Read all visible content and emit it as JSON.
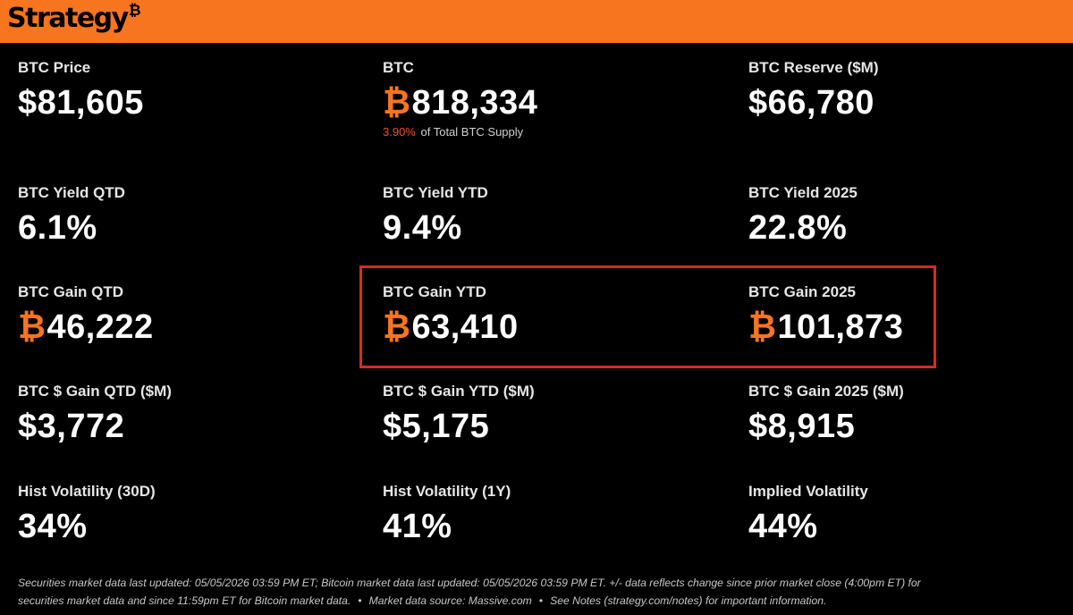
{
  "header": {
    "logo_text": "Strategy",
    "logo_mark": "₿",
    "bg_color": "#F7751E"
  },
  "colors": {
    "accent": "#F7751E",
    "highlight_border": "#D42A2A",
    "supply_pct": "#F0502A"
  },
  "btc_symbol": "₿",
  "metrics": {
    "btc_price": {
      "label": "BTC Price",
      "value": "$81,605"
    },
    "btc_holdings": {
      "label": "BTC",
      "value": "818,334",
      "supply_pct": "3.90%",
      "supply_text": "of Total BTC Supply"
    },
    "btc_reserve": {
      "label": "BTC Reserve ($M)",
      "value": "$66,780"
    },
    "yield_qtd": {
      "label": "BTC Yield QTD",
      "value": "6.1%"
    },
    "yield_ytd": {
      "label": "BTC Yield YTD",
      "value": "9.4%"
    },
    "yield_2025": {
      "label": "BTC Yield 2025",
      "value": "22.8%"
    },
    "gain_qtd": {
      "label": "BTC Gain QTD",
      "value": "46,222"
    },
    "gain_ytd": {
      "label": "BTC Gain YTD",
      "value": "63,410"
    },
    "gain_2025": {
      "label": "BTC Gain 2025",
      "value": "101,873"
    },
    "usd_gain_qtd": {
      "label": "BTC $ Gain QTD ($M)",
      "value": "$3,772"
    },
    "usd_gain_ytd": {
      "label": "BTC $ Gain YTD ($M)",
      "value": "$5,175"
    },
    "usd_gain_2025": {
      "label": "BTC $ Gain 2025 ($M)",
      "value": "$8,915"
    },
    "hist_vol_30d": {
      "label": "Hist Volatility (30D)",
      "value": "34%"
    },
    "hist_vol_1y": {
      "label": "Hist Volatility (1Y)",
      "value": "41%"
    },
    "implied_vol": {
      "label": "Implied Volatility",
      "value": "44%"
    }
  },
  "footer": {
    "line1": "Securities market data last updated: 05/05/2026 03:59 PM ET; Bitcoin market data last updated: 05/05/2026 03:59 PM ET. +/- data reflects change since prior market close (4:00pm ET) for",
    "line2_a": "securities market data and since 11:59pm ET for Bitcoin market data.",
    "line2_b": "Market data source: Massive.com",
    "line2_c": "See Notes (strategy.com/notes) for important information.",
    "separator": "•"
  }
}
